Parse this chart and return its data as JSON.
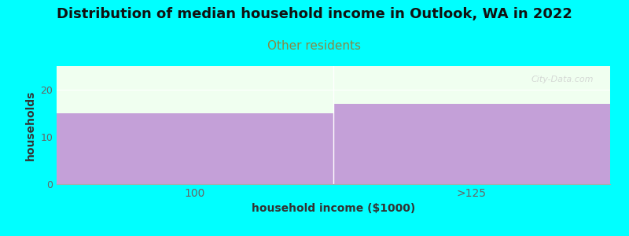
{
  "title": "Distribution of median household income in Outlook, WA in 2022",
  "subtitle": "Other residents",
  "xlabel": "household income ($1000)",
  "ylabel": "households",
  "categories": [
    "100",
    ">125"
  ],
  "values": [
    15,
    17
  ],
  "bar_color": "#c4a0d8",
  "background_outer": "#00ffff",
  "background_inner": "#f0fff0",
  "ylim": [
    0,
    25
  ],
  "yticks": [
    0,
    10,
    20
  ],
  "title_fontsize": 13,
  "subtitle_fontsize": 11,
  "subtitle_color": "#888844",
  "axis_label_fontsize": 10,
  "watermark": "City-Data.com",
  "tick_color": "#666666",
  "spine_color": "#aaaaaa"
}
